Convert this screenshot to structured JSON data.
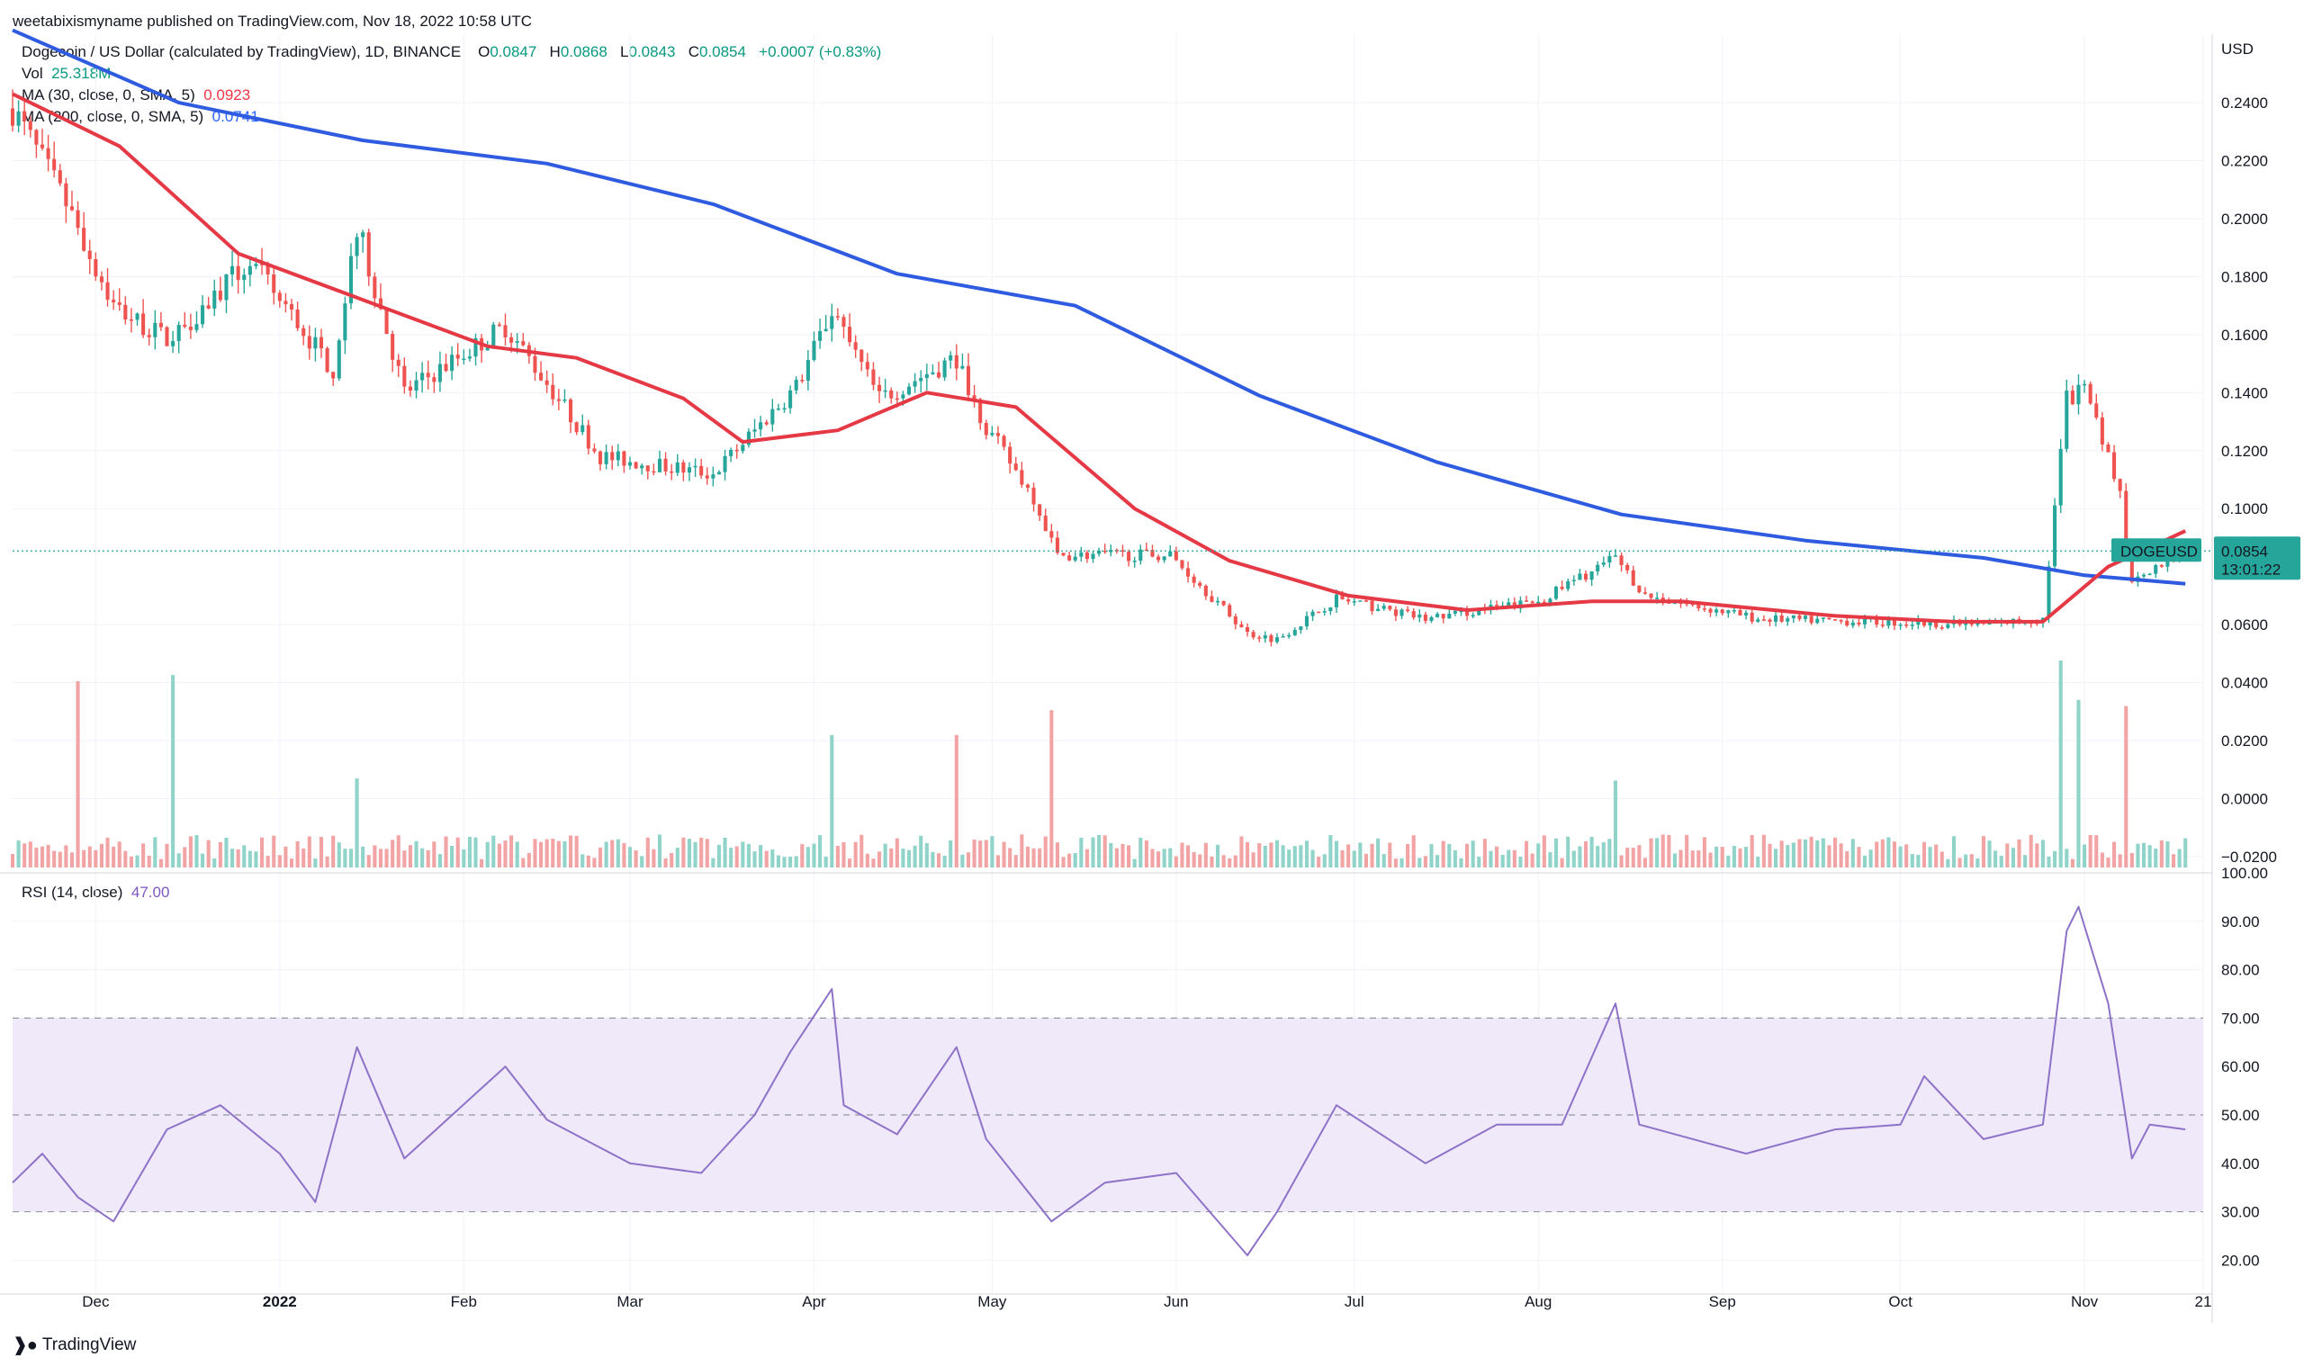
{
  "publisher": "weetabixismyname published on TradingView.com, Nov 18, 2022 10:58 UTC",
  "header": {
    "symbol_line": "Dogecoin / US Dollar (calculated by TradingView), 1D, BINANCE",
    "o_label": "O",
    "o_value": "0.0847",
    "h_label": "H",
    "h_value": "0.0868",
    "l_label": "L",
    "l_value": "0.0843",
    "c_label": "C",
    "c_value": "0.0854",
    "change": "+0.0007 (+0.83%)",
    "vol_label": "Vol",
    "vol_value": "25.318M",
    "ma30_label": "MA (30, close, 0, SMA, 5)",
    "ma30_value": "0.0923",
    "ma200_label": "MA (200, close, 0, SMA, 5)",
    "ma200_value": "0.0741",
    "rsi_label": "RSI (14, close)",
    "rsi_value": "47.00"
  },
  "logo_text": "TradingView",
  "colors": {
    "up": "#26a69a",
    "down": "#ef5350",
    "vol_up": "#8fd3c9",
    "vol_down": "#f2a3a3",
    "ma30": "#e53945",
    "ma200": "#2e5be0",
    "rsi": "#8e72c8",
    "rsi_band": "#efe9fa",
    "price_tag": "#26a69a",
    "grid": "#f0f3fa"
  },
  "chart_data": [
    {
      "type": "candlestick",
      "pair": "DOGEUSD",
      "currency_label": "USD",
      "y_ticks": [
        "0.2400",
        "0.2200",
        "0.2000",
        "0.1800",
        "0.1600",
        "0.1400",
        "0.1200",
        "0.1000",
        "0.0600",
        "0.0400",
        "0.0200",
        "0.0000",
        "−0.0200"
      ],
      "ylim": [
        -0.025,
        0.263
      ],
      "last_price": "0.0854",
      "countdown": "13:01:22",
      "x_ticks": [
        "Dec",
        "2022",
        "Feb",
        "Mar",
        "Apr",
        "May",
        "Jun",
        "Jul",
        "Aug",
        "Sep",
        "Oct",
        "Nov",
        "21"
      ],
      "x_range": [
        "2021-11-17",
        "2022-11-21"
      ],
      "key_closes": [
        {
          "date": "2021-11-17",
          "value": 0.238
        },
        {
          "date": "2021-11-26",
          "value": 0.205
        },
        {
          "date": "2021-12-04",
          "value": 0.17
        },
        {
          "date": "2021-12-13",
          "value": 0.158
        },
        {
          "date": "2021-12-27",
          "value": 0.185
        },
        {
          "date": "2022-01-10",
          "value": 0.148
        },
        {
          "date": "2022-01-14",
          "value": 0.198
        },
        {
          "date": "2022-01-22",
          "value": 0.14
        },
        {
          "date": "2022-02-08",
          "value": 0.163
        },
        {
          "date": "2022-02-24",
          "value": 0.118
        },
        {
          "date": "2022-03-15",
          "value": 0.112
        },
        {
          "date": "2022-03-29",
          "value": 0.142
        },
        {
          "date": "2022-04-04",
          "value": 0.168
        },
        {
          "date": "2022-04-12",
          "value": 0.138
        },
        {
          "date": "2022-04-25",
          "value": 0.152
        },
        {
          "date": "2022-04-30",
          "value": 0.128
        },
        {
          "date": "2022-05-08",
          "value": 0.104
        },
        {
          "date": "2022-05-12",
          "value": 0.084
        },
        {
          "date": "2022-05-31",
          "value": 0.084
        },
        {
          "date": "2022-06-13",
          "value": 0.057
        },
        {
          "date": "2022-06-18",
          "value": 0.055
        },
        {
          "date": "2022-06-28",
          "value": 0.069
        },
        {
          "date": "2022-07-13",
          "value": 0.062
        },
        {
          "date": "2022-08-01",
          "value": 0.068
        },
        {
          "date": "2022-08-14",
          "value": 0.083
        },
        {
          "date": "2022-08-19",
          "value": 0.07
        },
        {
          "date": "2022-09-07",
          "value": 0.062
        },
        {
          "date": "2022-09-25",
          "value": 0.061
        },
        {
          "date": "2022-10-15",
          "value": 0.06
        },
        {
          "date": "2022-10-25",
          "value": 0.062
        },
        {
          "date": "2022-10-29",
          "value": 0.138
        },
        {
          "date": "2022-11-01",
          "value": 0.14
        },
        {
          "date": "2022-11-07",
          "value": 0.105
        },
        {
          "date": "2022-11-09",
          "value": 0.076
        },
        {
          "date": "2022-11-18",
          "value": 0.0854
        }
      ],
      "ma30_points": [
        {
          "date": "2021-11-17",
          "value": 0.243
        },
        {
          "date": "2021-12-05",
          "value": 0.225
        },
        {
          "date": "2021-12-25",
          "value": 0.188
        },
        {
          "date": "2022-01-15",
          "value": 0.172
        },
        {
          "date": "2022-02-05",
          "value": 0.156
        },
        {
          "date": "2022-02-20",
          "value": 0.152
        },
        {
          "date": "2022-03-10",
          "value": 0.138
        },
        {
          "date": "2022-03-20",
          "value": 0.123
        },
        {
          "date": "2022-04-05",
          "value": 0.127
        },
        {
          "date": "2022-04-20",
          "value": 0.14
        },
        {
          "date": "2022-05-05",
          "value": 0.135
        },
        {
          "date": "2022-05-25",
          "value": 0.1
        },
        {
          "date": "2022-06-10",
          "value": 0.082
        },
        {
          "date": "2022-06-30",
          "value": 0.07
        },
        {
          "date": "2022-07-20",
          "value": 0.065
        },
        {
          "date": "2022-08-10",
          "value": 0.068
        },
        {
          "date": "2022-08-25",
          "value": 0.068
        },
        {
          "date": "2022-09-20",
          "value": 0.063
        },
        {
          "date": "2022-10-10",
          "value": 0.061
        },
        {
          "date": "2022-10-25",
          "value": 0.061
        },
        {
          "date": "2022-11-05",
          "value": 0.08
        },
        {
          "date": "2022-11-18",
          "value": 0.0923
        }
      ],
      "ma200_points": [
        {
          "date": "2021-11-17",
          "value": 0.265
        },
        {
          "date": "2021-12-15",
          "value": 0.24
        },
        {
          "date": "2022-01-15",
          "value": 0.227
        },
        {
          "date": "2022-02-15",
          "value": 0.219
        },
        {
          "date": "2022-03-15",
          "value": 0.205
        },
        {
          "date": "2022-04-15",
          "value": 0.181
        },
        {
          "date": "2022-05-15",
          "value": 0.17
        },
        {
          "date": "2022-06-15",
          "value": 0.139
        },
        {
          "date": "2022-07-15",
          "value": 0.116
        },
        {
          "date": "2022-08-15",
          "value": 0.098
        },
        {
          "date": "2022-09-15",
          "value": 0.089
        },
        {
          "date": "2022-10-15",
          "value": 0.083
        },
        {
          "date": "2022-11-01",
          "value": 0.077
        },
        {
          "date": "2022-11-18",
          "value": 0.0741
        }
      ],
      "volume_spikes": [
        {
          "date": "2021-11-28",
          "value": 0.9
        },
        {
          "date": "2021-12-14",
          "value": 0.93
        },
        {
          "date": "2022-01-14",
          "value": 0.43
        },
        {
          "date": "2022-04-04",
          "value": 0.64
        },
        {
          "date": "2022-04-25",
          "value": 0.64
        },
        {
          "date": "2022-05-11",
          "value": 0.76
        },
        {
          "date": "2022-08-14",
          "value": 0.42
        },
        {
          "date": "2022-10-28",
          "value": 1.0
        },
        {
          "date": "2022-10-31",
          "value": 0.81
        },
        {
          "date": "2022-11-08",
          "value": 0.78
        }
      ]
    },
    {
      "type": "line",
      "name": "RSI (14, close)",
      "y_ticks": [
        "100.00",
        "90.00",
        "80.00",
        "70.00",
        "60.00",
        "50.00",
        "40.00",
        "30.00",
        "20.00"
      ],
      "ylim": [
        13,
        100
      ],
      "bands": {
        "upper": 70,
        "middle": 50,
        "lower": 30
      },
      "points": [
        {
          "date": "2021-11-17",
          "value": 36
        },
        {
          "date": "2021-11-22",
          "value": 42
        },
        {
          "date": "2021-11-28",
          "value": 33
        },
        {
          "date": "2021-12-04",
          "value": 28
        },
        {
          "date": "2021-12-13",
          "value": 47
        },
        {
          "date": "2021-12-22",
          "value": 52
        },
        {
          "date": "2022-01-01",
          "value": 42
        },
        {
          "date": "2022-01-07",
          "value": 32
        },
        {
          "date": "2022-01-14",
          "value": 64
        },
        {
          "date": "2022-01-22",
          "value": 41
        },
        {
          "date": "2022-02-08",
          "value": 60
        },
        {
          "date": "2022-02-15",
          "value": 49
        },
        {
          "date": "2022-03-01",
          "value": 40
        },
        {
          "date": "2022-03-13",
          "value": 38
        },
        {
          "date": "2022-03-22",
          "value": 50
        },
        {
          "date": "2022-03-28",
          "value": 63
        },
        {
          "date": "2022-04-04",
          "value": 76
        },
        {
          "date": "2022-04-06",
          "value": 52
        },
        {
          "date": "2022-04-15",
          "value": 46
        },
        {
          "date": "2022-04-25",
          "value": 64
        },
        {
          "date": "2022-04-30",
          "value": 45
        },
        {
          "date": "2022-05-11",
          "value": 28
        },
        {
          "date": "2022-05-20",
          "value": 36
        },
        {
          "date": "2022-06-01",
          "value": 38
        },
        {
          "date": "2022-06-13",
          "value": 21
        },
        {
          "date": "2022-06-18",
          "value": 30
        },
        {
          "date": "2022-06-28",
          "value": 52
        },
        {
          "date": "2022-07-13",
          "value": 40
        },
        {
          "date": "2022-07-25",
          "value": 48
        },
        {
          "date": "2022-08-05",
          "value": 48
        },
        {
          "date": "2022-08-14",
          "value": 73
        },
        {
          "date": "2022-08-18",
          "value": 48
        },
        {
          "date": "2022-09-05",
          "value": 42
        },
        {
          "date": "2022-09-20",
          "value": 47
        },
        {
          "date": "2022-10-01",
          "value": 48
        },
        {
          "date": "2022-10-05",
          "value": 58
        },
        {
          "date": "2022-10-15",
          "value": 45
        },
        {
          "date": "2022-10-25",
          "value": 48
        },
        {
          "date": "2022-10-29",
          "value": 88
        },
        {
          "date": "2022-10-31",
          "value": 93
        },
        {
          "date": "2022-11-05",
          "value": 73
        },
        {
          "date": "2022-11-09",
          "value": 41
        },
        {
          "date": "2022-11-12",
          "value": 48
        },
        {
          "date": "2022-11-18",
          "value": 47
        }
      ]
    }
  ]
}
